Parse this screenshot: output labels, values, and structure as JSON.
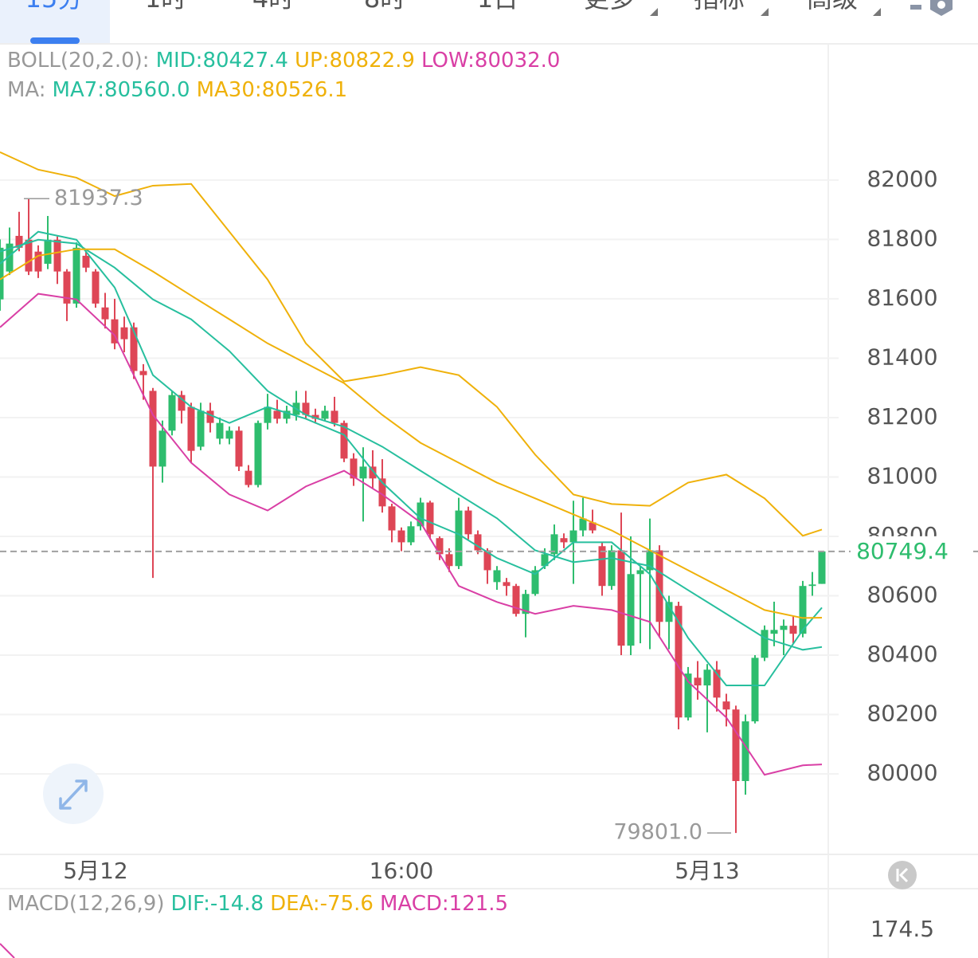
{
  "tabs": [
    "15分",
    "1时",
    "4时",
    "8时",
    "1日",
    "更多",
    "指标",
    "高级"
  ],
  "active_tab": 0,
  "chart_data": {
    "type": "candlestick",
    "up_color": "#2ebd6e",
    "down_color": "#de4656",
    "xlim": [
      0,
      86
    ],
    "xticks": [
      {
        "value": 10,
        "label": "5月12"
      },
      {
        "value": 42,
        "label": "16:00"
      },
      {
        "value": 74,
        "label": "5月13"
      }
    ],
    "ylim": [
      79729,
      82456
    ],
    "yticks": [
      80000,
      80200,
      80400,
      80600,
      80800,
      81000,
      81200,
      81400,
      81600,
      81800,
      82000
    ],
    "grid": true,
    "open": [
      81598,
      81692,
      81812,
      81799,
      81759,
      81718,
      81799,
      81692,
      81584,
      81745,
      81692,
      81571,
      81531,
      81504,
      81504,
      81357,
      81290,
      81035,
      81156,
      81276,
      81236,
      81102,
      81223,
      81129,
      81129,
      81156,
      81021,
      80973,
      81182,
      81223,
      81196,
      81209,
      81250,
      81209,
      81196,
      81223,
      81182,
      81062,
      80995,
      81035,
      80995,
      80901,
      80820,
      80780,
      80834,
      80914,
      80794,
      80740,
      80700,
      80887,
      80807,
      80753,
      80646,
      80646,
      80633,
      80539,
      80606,
      80700,
      80740,
      80794,
      80780,
      80820,
      80847,
      80767,
      80633,
      80753,
      80432,
      80673,
      80686,
      80753,
      80512,
      80566,
      80190,
      80324,
      80298,
      80351,
      80244,
      80217,
      79976,
      80177,
      80391,
      80472,
      80485,
      80499,
      80472,
      80633,
      80640
    ],
    "high": [
      81800,
      81840,
      81893,
      81937.3,
      81780,
      81879,
      81810,
      81700,
      81790,
      81760,
      81700,
      81620,
      81600,
      81540,
      81520,
      81380,
      81300,
      81190,
      81290,
      81290,
      81250,
      81250,
      81250,
      81200,
      81170,
      81170,
      81040,
      81190,
      81280,
      81260,
      81240,
      81290,
      81290,
      81230,
      81240,
      81270,
      81190,
      81080,
      81100,
      81090,
      81060,
      80910,
      80830,
      80850,
      80930,
      80920,
      80800,
      80760,
      80930,
      80900,
      80820,
      80760,
      80700,
      80660,
      80640,
      80620,
      80700,
      80760,
      80840,
      80810,
      80920,
      80930,
      80890,
      80780,
      80770,
      80880,
      80800,
      80700,
      80860,
      80770,
      80600,
      80580,
      80360,
      80380,
      80370,
      80380,
      80270,
      80230,
      80200,
      80400,
      80500,
      80580,
      80520,
      80530,
      80650,
      80680,
      80749.4
    ],
    "low": [
      81560,
      81680,
      81760,
      81680,
      81670,
      81700,
      81650,
      81525,
      81570,
      81690,
      81570,
      81500,
      81430,
      81420,
      81330,
      81260,
      80660,
      80981,
      81140,
      81180,
      81050,
      81090,
      81150,
      81110,
      81110,
      81020,
      80965,
      80965,
      81160,
      81180,
      81180,
      81190,
      81195,
      81180,
      81190,
      81170,
      81050,
      80970,
      80850,
      80960,
      80880,
      80780,
      80750,
      80770,
      80820,
      80790,
      80720,
      80680,
      80690,
      80790,
      80740,
      80640,
      80620,
      80600,
      80530,
      80460,
      80600,
      80690,
      80720,
      80760,
      80640,
      80800,
      80810,
      80600,
      80620,
      80400,
      80400,
      80440,
      80420,
      80460,
      80420,
      80150,
      80180,
      80250,
      80140,
      80210,
      80160,
      79801,
      79930,
      80170,
      80380,
      80430,
      80400,
      80440,
      80460,
      80600,
      80640
    ],
    "close": [
      81772,
      81786,
      81772,
      81692,
      81692,
      81799,
      81692,
      81584,
      81772,
      81705,
      81584,
      81531,
      81450,
      81464,
      81357,
      81343,
      81035,
      81156,
      81276,
      81223,
      81088,
      81223,
      81182,
      81182,
      81156,
      81035,
      80973,
      81182,
      81236,
      81196,
      81223,
      81250,
      81209,
      81196,
      81223,
      81182,
      81062,
      80995,
      81035,
      80995,
      80901,
      80820,
      80780,
      80834,
      80914,
      80807,
      80740,
      80700,
      80887,
      80807,
      80753,
      80686,
      80686,
      80633,
      80539,
      80606,
      80686,
      80740,
      80807,
      80780,
      80820,
      80860,
      80820,
      80633,
      80753,
      80432,
      80673,
      80686,
      80753,
      80512,
      80579,
      80190,
      80338,
      80298,
      80351,
      80257,
      80217,
      79976,
      80177,
      80391,
      80485,
      80485,
      80499,
      80472,
      80633,
      80638,
      80749.4
    ],
    "overlay_x": [
      0,
      4,
      8,
      12,
      16,
      20,
      24,
      28,
      32,
      36,
      40,
      44,
      48,
      52,
      56,
      60,
      64,
      68,
      72,
      76,
      80,
      84,
      86
    ],
    "indicators": [
      {
        "title": "BOLL(20,2.0):",
        "series": [
          {
            "name": "MID:80427.4",
            "color": "#27bf9e",
            "values": [
              81759,
              81799,
              81786,
              81705,
              81598,
              81531,
              81424,
              81290,
              81209,
              81169,
              81102,
              81021,
              80941,
              80861,
              80753,
              80713,
              80727,
              80700,
              80619,
              80539,
              80458,
              80418,
              80427.4
            ]
          },
          {
            "name": "UP:80822.9",
            "color": "#efb10a",
            "values": [
              82094,
              82035,
              82008,
              81946,
              81981,
              81987,
              81826,
              81665,
              81450,
              81322,
              81343,
              81370,
              81343,
              81236,
              81075,
              80941,
              80909,
              80903,
              80981,
              81008,
              80928,
              80802,
              80822.9
            ]
          },
          {
            "name": "LOW:80032.0",
            "color": "#d93fa5",
            "values": [
              81504,
              81617,
              81598,
              81477,
              81209,
              81048,
              80941,
              80887,
              80968,
              81021,
              80941,
              80847,
              80633,
              80579,
              80539,
              80566,
              80552,
              80512,
              80311,
              80190,
              79997,
              80029,
              80032
            ]
          }
        ]
      },
      {
        "title": "MA:",
        "series": [
          {
            "name": "MA7:80560.0",
            "color": "#27bf9e",
            "values": [
              81718,
              81826,
              81799,
              81638,
              81343,
              81236,
              81182,
              81236,
              81196,
              81142,
              80981,
              80861,
              80807,
              80727,
              80673,
              80780,
              80780,
              80673,
              80458,
              80298,
              80298,
              80485,
              80560
            ]
          },
          {
            "name": "MA30:80526.1",
            "color": "#efb10a",
            "values": [
              81665,
              81745,
              81767,
              81767,
              81692,
              81611,
              81531,
              81450,
              81383,
              81316,
              81209,
              81115,
              81048,
              80981,
              80928,
              80874,
              80820,
              80753,
              80686,
              80619,
              80552,
              80525,
              80526.1
            ]
          }
        ]
      }
    ],
    "annotations": [
      {
        "index": 3,
        "value": 81937.3,
        "label": "81937.3"
      },
      {
        "index": 77,
        "value": 79801,
        "label": "79801.0"
      }
    ]
  },
  "macd": {
    "title": "MACD(12,26,9)",
    "readouts": [
      {
        "name": "DIF:-14.8",
        "color": "#27bf9e"
      },
      {
        "name": "DEA:-75.6",
        "color": "#efb10a"
      },
      {
        "name": "MACD:121.5",
        "color": "#d93fa5"
      }
    ],
    "yticks": [
      174.5
    ]
  }
}
